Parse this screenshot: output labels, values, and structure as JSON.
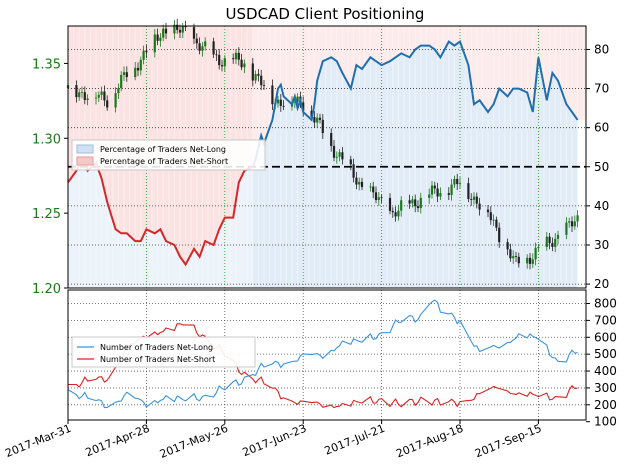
{
  "title": "USDCAD Client Positioning",
  "colors": {
    "price_green": "#1a7a1a",
    "net_long_line": "#1f6fb0",
    "net_long_fill": "#dfeaf6",
    "net_short_line": "#d62728",
    "net_short_fill": "#fadada",
    "count_long": "#3a94dd",
    "count_short": "#e02020",
    "candle": "#222222"
  },
  "legend_top": {
    "net_long": "Percentage of Traders Net-Long",
    "net_short": "Percentage of Traders Net-Short"
  },
  "legend_bottom": {
    "long": "Number of Traders Net-Long",
    "short": "Number of Traders Net-Short"
  },
  "x_tick_labels": [
    "2017-Mar-31",
    "2017-Apr-28",
    "2017-May-26",
    "2017-Jun-23",
    "2017-Jul-21",
    "2017-Aug-18",
    "2017-Sep-15"
  ],
  "chart_data": [
    {
      "type": "line",
      "title": "USDCAD Client Positioning",
      "x_range": [
        "2017-03-31",
        "2017-10-02"
      ],
      "left_axis": {
        "ticks": [
          "1.20",
          "1.25",
          "1.30",
          "1.35"
        ],
        "ylim": [
          1.2,
          1.375
        ]
      },
      "right_axis": {
        "ticks": [
          "20",
          "30",
          "40",
          "50",
          "60",
          "70",
          "80"
        ],
        "ylim": [
          19,
          86
        ]
      },
      "reference_line": 50,
      "legend_position": "middle-left",
      "grid": true,
      "series": [
        {
          "name": "Percentage of Traders Net-Long",
          "x": [
            "2017-06-05",
            "2017-06-06",
            "2017-06-07",
            "2017-06-08",
            "2017-06-09",
            "2017-06-12",
            "2017-06-13",
            "2017-06-14",
            "2017-06-15",
            "2017-06-16",
            "2017-06-19",
            "2017-06-20",
            "2017-06-21",
            "2017-06-22",
            "2017-06-23",
            "2017-06-26",
            "2017-06-27",
            "2017-06-28",
            "2017-06-30",
            "2017-07-03",
            "2017-07-05",
            "2017-07-07",
            "2017-07-10",
            "2017-07-12",
            "2017-07-14",
            "2017-07-17",
            "2017-07-19",
            "2017-07-21",
            "2017-07-24",
            "2017-07-26",
            "2017-07-28",
            "2017-07-31",
            "2017-08-02",
            "2017-08-04",
            "2017-08-07",
            "2017-08-09",
            "2017-08-11",
            "2017-08-14",
            "2017-08-16",
            "2017-08-18",
            "2017-08-21",
            "2017-08-23",
            "2017-08-25",
            "2017-08-28",
            "2017-08-30",
            "2017-09-01",
            "2017-09-04",
            "2017-09-06",
            "2017-09-08",
            "2017-09-11",
            "2017-09-13",
            "2017-09-15",
            "2017-09-18",
            "2017-09-20",
            "2017-09-22",
            "2017-09-25",
            "2017-09-27",
            "2017-09-29"
          ],
          "values": [
            50,
            52,
            55,
            58,
            56,
            62,
            66,
            70,
            71,
            68,
            66,
            68,
            65,
            67,
            64,
            62,
            66,
            72,
            77,
            78,
            77,
            74,
            70,
            76,
            75,
            78,
            77,
            76,
            77,
            78,
            79,
            78,
            80,
            81,
            81,
            80,
            78,
            82,
            81,
            82,
            76,
            66,
            67,
            64,
            66,
            70,
            68,
            70,
            70,
            69,
            64,
            78,
            67,
            74,
            72,
            66,
            64,
            62
          ]
        },
        {
          "name": "Percentage of Traders Net-Short",
          "x": [
            "2017-03-31",
            "2017-04-03",
            "2017-04-05",
            "2017-04-07",
            "2017-04-10",
            "2017-04-12",
            "2017-04-14",
            "2017-04-17",
            "2017-04-19",
            "2017-04-21",
            "2017-04-24",
            "2017-04-26",
            "2017-04-28",
            "2017-05-01",
            "2017-05-03",
            "2017-05-05",
            "2017-05-08",
            "2017-05-10",
            "2017-05-12",
            "2017-05-15",
            "2017-05-17",
            "2017-05-19",
            "2017-05-22",
            "2017-05-24",
            "2017-05-26",
            "2017-05-29",
            "2017-05-31",
            "2017-06-02",
            "2017-06-05"
          ],
          "values": [
            46,
            49,
            52,
            49,
            51,
            47,
            41,
            34,
            33,
            33,
            31,
            31,
            34,
            33,
            34,
            31,
            30,
            27,
            25,
            29,
            27,
            31,
            30,
            34,
            37,
            37,
            46,
            49,
            50
          ]
        },
        {
          "name": "USDCAD",
          "axis": "left",
          "x": [
            "2017-03-31",
            "2017-04-14",
            "2017-05-04",
            "2017-05-12",
            "2017-05-22",
            "2017-06-02",
            "2017-06-13",
            "2017-06-23",
            "2017-07-05",
            "2017-07-14",
            "2017-07-25",
            "2017-08-04",
            "2017-08-18",
            "2017-08-28",
            "2017-09-07",
            "2017-09-15",
            "2017-09-29"
          ],
          "values": [
            1.333,
            1.326,
            1.372,
            1.371,
            1.354,
            1.35,
            1.325,
            1.324,
            1.29,
            1.268,
            1.25,
            1.26,
            1.27,
            1.25,
            1.215,
            1.225,
            1.245
          ]
        }
      ]
    },
    {
      "type": "line",
      "x_range": [
        "2017-03-31",
        "2017-10-02"
      ],
      "ylim": [
        110,
        880
      ],
      "y_ticks": [
        "100",
        "200",
        "300",
        "400",
        "500",
        "600",
        "700",
        "800"
      ],
      "legend_position": "middle-left",
      "grid": true,
      "series": [
        {
          "name": "Number of Traders Net-Long",
          "x": [
            "2017-03-31",
            "2017-04-07",
            "2017-04-14",
            "2017-04-21",
            "2017-04-28",
            "2017-05-05",
            "2017-05-12",
            "2017-05-19",
            "2017-05-26",
            "2017-06-02",
            "2017-06-09",
            "2017-06-16",
            "2017-06-23",
            "2017-06-30",
            "2017-07-07",
            "2017-07-14",
            "2017-07-21",
            "2017-07-28",
            "2017-08-04",
            "2017-08-08",
            "2017-08-11",
            "2017-08-18",
            "2017-08-25",
            "2017-09-01",
            "2017-09-08",
            "2017-09-15",
            "2017-09-22",
            "2017-09-29"
          ],
          "values": [
            280,
            240,
            200,
            250,
            210,
            240,
            230,
            250,
            300,
            350,
            430,
            450,
            480,
            500,
            560,
            580,
            620,
            700,
            720,
            830,
            760,
            700,
            500,
            560,
            600,
            600,
            450,
            520
          ]
        },
        {
          "name": "Number of Traders Net-Short",
          "x": [
            "2017-03-31",
            "2017-04-07",
            "2017-04-14",
            "2017-04-21",
            "2017-04-28",
            "2017-05-05",
            "2017-05-12",
            "2017-05-19",
            "2017-05-26",
            "2017-06-02",
            "2017-06-09",
            "2017-06-16",
            "2017-06-23",
            "2017-06-30",
            "2017-07-07",
            "2017-07-14",
            "2017-07-21",
            "2017-07-28",
            "2017-08-04",
            "2017-08-11",
            "2017-08-18",
            "2017-08-25",
            "2017-09-01",
            "2017-09-08",
            "2017-09-15",
            "2017-09-22",
            "2017-09-29"
          ],
          "values": [
            310,
            340,
            360,
            520,
            620,
            640,
            680,
            600,
            500,
            380,
            330,
            250,
            200,
            210,
            190,
            220,
            230,
            200,
            230,
            210,
            220,
            250,
            320,
            250,
            260,
            240,
            310
          ]
        }
      ]
    }
  ]
}
